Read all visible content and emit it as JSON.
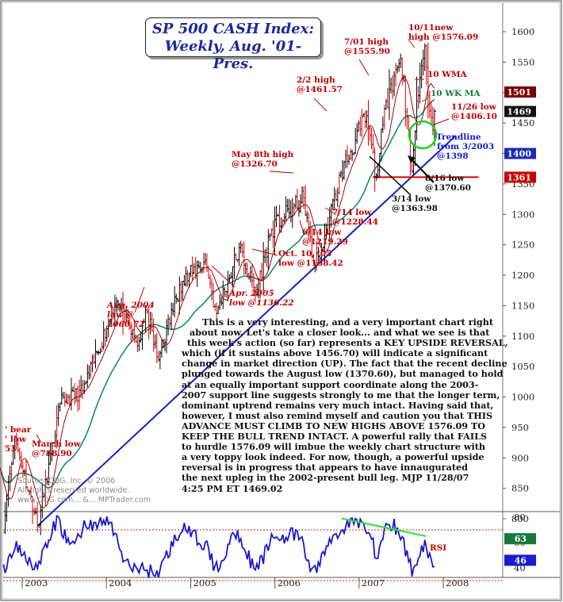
{
  "title": {
    "line1": "SP 500 CASH Index:",
    "line2": "Weekly, Aug. '01-Pres."
  },
  "colors": {
    "price_bar": "#000000",
    "down_bar": "#d40000",
    "wma10": "#b00000",
    "ma_green": "#168a78",
    "trendline": "#1320c8",
    "support": "#dd0000",
    "annotation": "#c00000",
    "rsi": "#1a1ad0"
  },
  "chart_data": [
    {
      "type": "ohlc",
      "title": "SP 500 CASH Index: Weekly, Aug. '01-Pres.",
      "x_ticks": [
        "2003",
        "2004",
        "2005",
        "2006",
        "2007",
        "2008"
      ],
      "y_ticks": [
        800,
        850,
        900,
        950,
        1000,
        1050,
        1100,
        1150,
        1200,
        1250,
        1300,
        1350,
        1400,
        1450,
        1500,
        1550,
        1600
      ],
      "ylim": [
        758,
        1628
      ],
      "price_labels": [
        {
          "label": "1501",
          "value": 1501,
          "color": "#7a0000"
        },
        {
          "label": "1469",
          "value": 1469,
          "color": "#111111"
        },
        {
          "label": "1400",
          "value": 1400,
          "color": "#1a2ab8"
        },
        {
          "label": "1361",
          "value": 1361,
          "color": "#cc0000"
        }
      ],
      "anchors": [
        {
          "date": "2002-07-20",
          "close": 870
        },
        {
          "date": "2002-08-20",
          "close": 935
        },
        {
          "date": "2002-10-10",
          "close": 778
        },
        {
          "date": "2002-11-27",
          "close": 935
        },
        {
          "date": "2003-03-11",
          "close": 789
        },
        {
          "date": "2003-06-15",
          "close": 990
        },
        {
          "date": "2003-09-20",
          "close": 1010
        },
        {
          "date": "2003-12-31",
          "close": 1112
        },
        {
          "date": "2004-02-11",
          "close": 1157
        },
        {
          "date": "2004-05-17",
          "close": 1084
        },
        {
          "date": "2004-06-25",
          "close": 1140
        },
        {
          "date": "2004-08-12",
          "close": 1061
        },
        {
          "date": "2004-11-15",
          "close": 1184
        },
        {
          "date": "2005-03-07",
          "close": 1225
        },
        {
          "date": "2005-04-20",
          "close": 1137
        },
        {
          "date": "2005-08-01",
          "close": 1245
        },
        {
          "date": "2005-10-10",
          "close": 1168
        },
        {
          "date": "2005-12-15",
          "close": 1275
        },
        {
          "date": "2006-05-08",
          "close": 1327
        },
        {
          "date": "2006-06-14",
          "close": 1220
        },
        {
          "date": "2006-07-14",
          "close": 1228
        },
        {
          "date": "2006-10-15",
          "close": 1368
        },
        {
          "date": "2007-02-02",
          "close": 1462
        },
        {
          "date": "2007-03-14",
          "close": 1364
        },
        {
          "date": "2007-05-10",
          "close": 1505
        },
        {
          "date": "2007-07-01",
          "close": 1556
        },
        {
          "date": "2007-07-27",
          "close": 1460
        },
        {
          "date": "2007-08-16",
          "close": 1371
        },
        {
          "date": "2007-09-20",
          "close": 1525
        },
        {
          "date": "2007-10-11",
          "close": 1576
        },
        {
          "date": "2007-11-05",
          "close": 1470
        },
        {
          "date": "2007-11-26",
          "close": 1406
        },
        {
          "date": "2007-11-28",
          "close": 1469
        }
      ],
      "series": [
        {
          "name": "10 WMA",
          "color": "#b00000"
        },
        {
          "name": "10 WK MA",
          "color": "#168a78"
        }
      ],
      "trendline": {
        "label": "Trendline from 3/2003 @1398",
        "from": [
          "2003-03-11",
          789
        ],
        "to": [
          "2007-11-28",
          1398
        ]
      },
      "support_line": {
        "value": 1361,
        "from": "2007-03-01",
        "to": "2007-09-01"
      },
      "annotations": [
        {
          "lines": [
            "10/11new",
            "high @1576.09"
          ],
          "date": "2007-10-11",
          "value": 1576.09
        },
        {
          "lines": [
            "7/01 high",
            "@1555.90"
          ],
          "date": "2007-07-01",
          "value": 1555.9
        },
        {
          "lines": [
            "2/2 high",
            "@1461.57"
          ],
          "date": "2007-02-02",
          "value": 1461.57
        },
        {
          "lines": [
            "May 8th high",
            "@1326.70"
          ],
          "date": "2006-05-08",
          "value": 1326.7
        },
        {
          "lines": [
            "7/14 low",
            "@1228.44"
          ],
          "date": "2006-07-14",
          "value": 1228.44
        },
        {
          "lines": [
            "6/14 low",
            "@1219.29"
          ],
          "date": "2006-06-14",
          "value": 1219.29
        },
        {
          "lines": [
            "Oct. 10, '05",
            "low  @1168.42"
          ],
          "date": "2005-10-10",
          "value": 1168.42
        },
        {
          "lines": [
            "Apr. 2005",
            "low @1136.22"
          ],
          "date": "2005-04-20",
          "value": 1136.22
        },
        {
          "lines": [
            "Aug. 2004",
            "low @",
            "1060.72"
          ],
          "date": "2004-08-12",
          "value": 1060.72
        },
        {
          "lines": [
            "March low",
            "@788.90"
          ],
          "date": "2003-03-11",
          "value": 788.9
        },
        {
          "lines": [
            "' bear",
            "' low",
            "53"
          ],
          "date": "2002-10-10",
          "value": 768
        },
        {
          "lines": [
            "11/26 low",
            "@1406.10"
          ],
          "date": "2007-11-26",
          "value": 1406.1
        },
        {
          "lines": [
            "8/16 low",
            "@1370.60"
          ],
          "date": "2007-08-16",
          "value": 1370.6
        },
        {
          "lines": [
            "3/14 low",
            "@1363.98"
          ],
          "date": "2007-03-14",
          "value": 1363.98
        },
        {
          "lines": [
            "10 WMA"
          ],
          "series": "10 WMA"
        },
        {
          "lines": [
            "10 WK MA"
          ],
          "series": "10 WK MA"
        }
      ]
    },
    {
      "type": "line",
      "title": "RSI",
      "y_ticks": [
        40,
        60,
        80
      ],
      "ylim": [
        32,
        88
      ],
      "price_labels": [
        {
          "label": "63",
          "value": 63,
          "color": "#177a3a"
        },
        {
          "label": "46",
          "value": 46,
          "color": "#1a1ad0"
        }
      ],
      "guides": [
        30,
        70
      ],
      "series": [
        {
          "name": "RSI",
          "color": "#1a1ad0",
          "anchors": [
            {
              "date": "2002-07-20",
              "value": 52
            },
            {
              "date": "2002-10-10",
              "value": 36
            },
            {
              "date": "2002-12-01",
              "value": 58
            },
            {
              "date": "2003-03-11",
              "value": 40
            },
            {
              "date": "2003-06-01",
              "value": 78
            },
            {
              "date": "2003-08-01",
              "value": 56
            },
            {
              "date": "2003-10-01",
              "value": 74
            },
            {
              "date": "2004-01-20",
              "value": 76
            },
            {
              "date": "2004-03-25",
              "value": 42
            },
            {
              "date": "2004-05-17",
              "value": 40
            },
            {
              "date": "2004-08-12",
              "value": 36
            },
            {
              "date": "2004-11-20",
              "value": 72
            },
            {
              "date": "2005-03-07",
              "value": 58
            },
            {
              "date": "2005-04-20",
              "value": 38
            },
            {
              "date": "2005-07-20",
              "value": 70
            },
            {
              "date": "2005-10-10",
              "value": 36
            },
            {
              "date": "2005-12-20",
              "value": 64
            },
            {
              "date": "2006-04-15",
              "value": 66
            },
            {
              "date": "2006-06-14",
              "value": 35
            },
            {
              "date": "2006-09-01",
              "value": 62
            },
            {
              "date": "2006-11-20",
              "value": 76
            },
            {
              "date": "2007-02-20",
              "value": 72
            },
            {
              "date": "2007-03-14",
              "value": 44
            },
            {
              "date": "2007-04-20",
              "value": 70
            },
            {
              "date": "2007-06-01",
              "value": 74
            },
            {
              "date": "2007-07-05",
              "value": 64
            },
            {
              "date": "2007-08-16",
              "value": 38
            },
            {
              "date": "2007-10-11",
              "value": 60
            },
            {
              "date": "2007-11-26",
              "value": 38
            },
            {
              "date": "2007-11-28",
              "value": 46
            }
          ]
        }
      ],
      "divergence_line": {
        "from": [
          "2007-01-01",
          79
        ],
        "to": [
          "2007-10-11",
          65
        ]
      },
      "annotations": [
        {
          "lines": [
            "RSI"
          ]
        }
      ]
    }
  ],
  "commentary": [
    "This is a very interesting, and a very important chart right",
    "about now. Let's take a closer look... and what we see is that",
    "this week's action (so far) represents a KEY UPSIDE REVERSAL,",
    "which (if it sustains above 1456.70) will indicate a significant",
    "change in market direction (UP). The fact that the recent decline",
    "plunged towards the August low (1370.60), but managed to hold",
    "at an equally important support coordinate along the 2003-",
    "2007 support line suggests strongly to me that the longer term,",
    "dominant uptrend remains very much intact. Having said that,",
    "however, I must also remind myself and caution you that THIS",
    "ADVANCE MUST CLIMB TO NEW HIGHS ABOVE 1576.09 TO",
    "KEEP THE BULL TREND INTACT. A powerful rally that FAILS",
    "to hurdle 1576.09 will imbue the weekly chart structure with",
    "a very toppy look indeed. For now, though, a powerful upside",
    "reversal is in progress that appears to have innaugurated",
    "the next upleg in the 2002-present bull leg. MJP  11/28/07",
    "4:25 PM ET  1469.02"
  ],
  "source": [
    "Source: CQG, Inc. © 2006",
    "All rights reserved worldwide.",
    "www.CQG.com... &... MPTrader.com"
  ]
}
